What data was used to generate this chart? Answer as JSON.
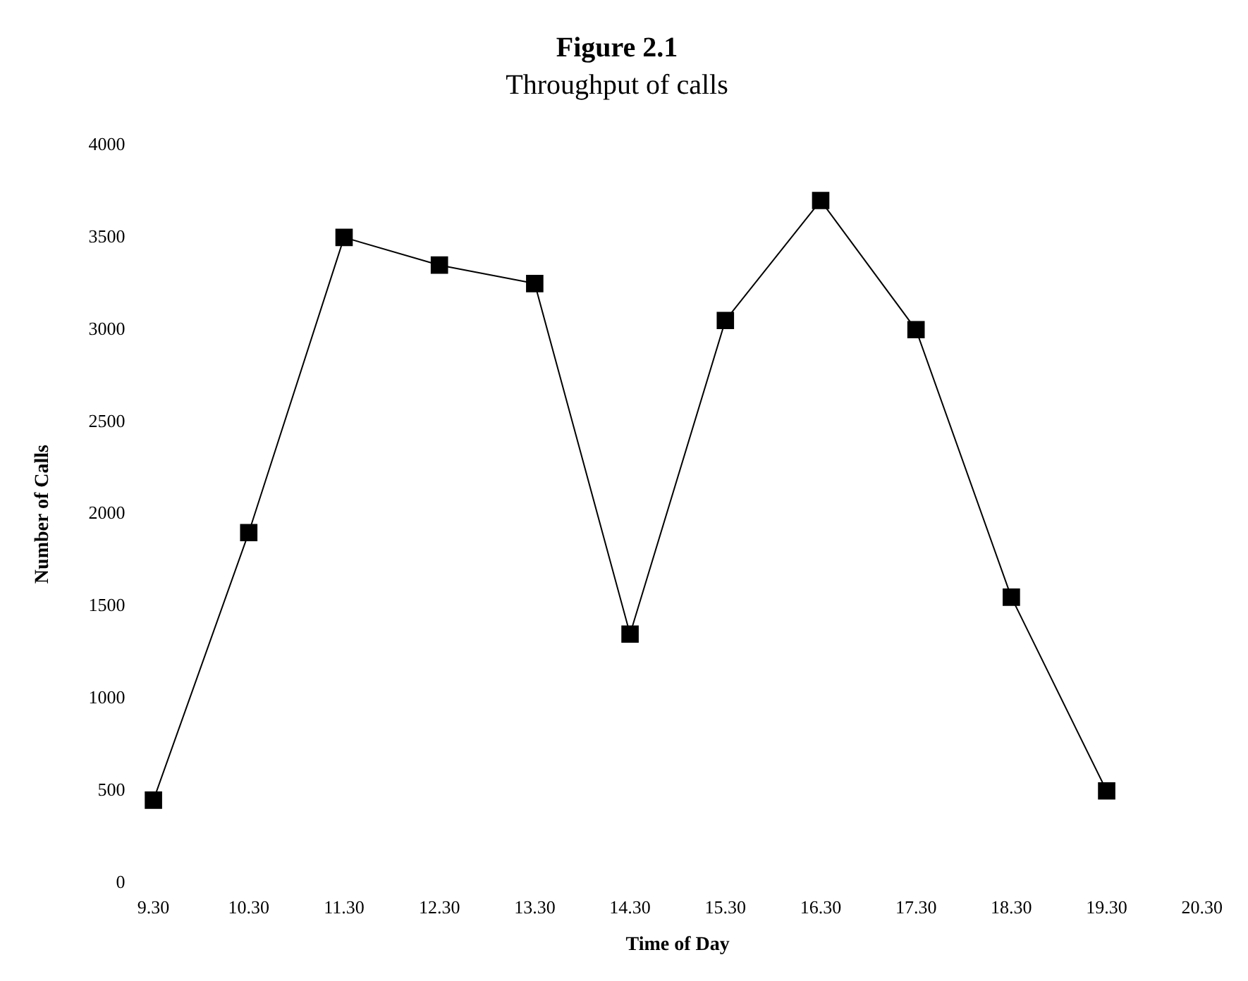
{
  "chart_data": {
    "type": "line",
    "title": "Figure 2.1",
    "subtitle": "Throughput of calls",
    "xlabel": "Time of Day",
    "ylabel": "Number of Calls",
    "categories": [
      "9.30",
      "10.30",
      "11.30",
      "12.30",
      "13.30",
      "14.30",
      "15.30",
      "16.30",
      "17.30",
      "18.30",
      "19.30",
      "20.30"
    ],
    "series": [
      {
        "color": "#000000",
        "values": [
          450,
          1900,
          3500,
          3350,
          3250,
          1350,
          3050,
          3700,
          3000,
          1550,
          500,
          null
        ]
      }
    ],
    "ylim": [
      0,
      4000
    ],
    "yticks": [
      0,
      500,
      1000,
      1500,
      2000,
      2500,
      3000,
      3500,
      4000
    ],
    "grid": false,
    "legend": false,
    "marker": "square",
    "line_style": "solid"
  }
}
